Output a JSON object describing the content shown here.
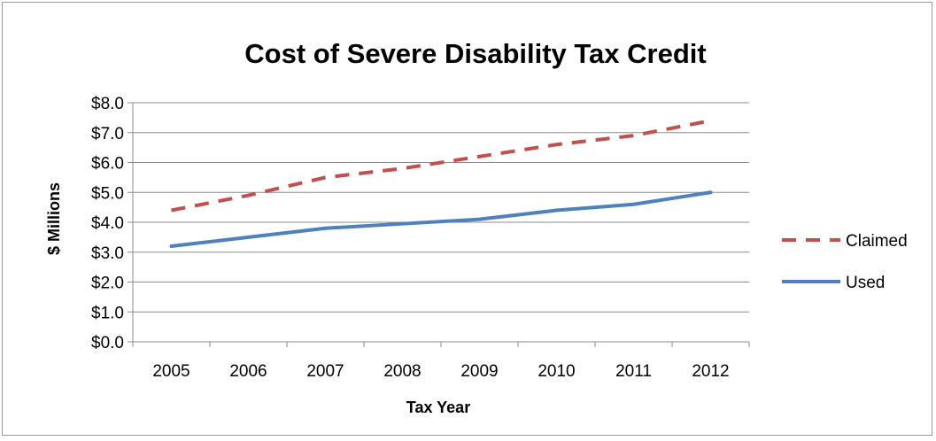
{
  "chart_data": {
    "type": "line",
    "title": "Cost of Severe Disability Tax Credit",
    "xlabel": "Tax Year",
    "ylabel": "$ Millions",
    "categories": [
      "2005",
      "2006",
      "2007",
      "2008",
      "2009",
      "2010",
      "2011",
      "2012"
    ],
    "ylim": [
      0,
      8
    ],
    "yticks": [
      "$0.0",
      "$1.0",
      "$2.0",
      "$3.0",
      "$4.0",
      "$5.0",
      "$6.0",
      "$7.0",
      "$8.0"
    ],
    "grid": true,
    "legend_position": "right",
    "series": [
      {
        "name": "Claimed",
        "values": [
          4.4,
          4.9,
          5.5,
          5.8,
          6.2,
          6.6,
          6.9,
          7.4
        ],
        "color": "#c0504d",
        "style": "dashed"
      },
      {
        "name": "Used",
        "values": [
          3.2,
          3.5,
          3.8,
          3.95,
          4.1,
          4.4,
          4.6,
          5.0
        ],
        "color": "#4f81bd",
        "style": "solid"
      }
    ]
  }
}
